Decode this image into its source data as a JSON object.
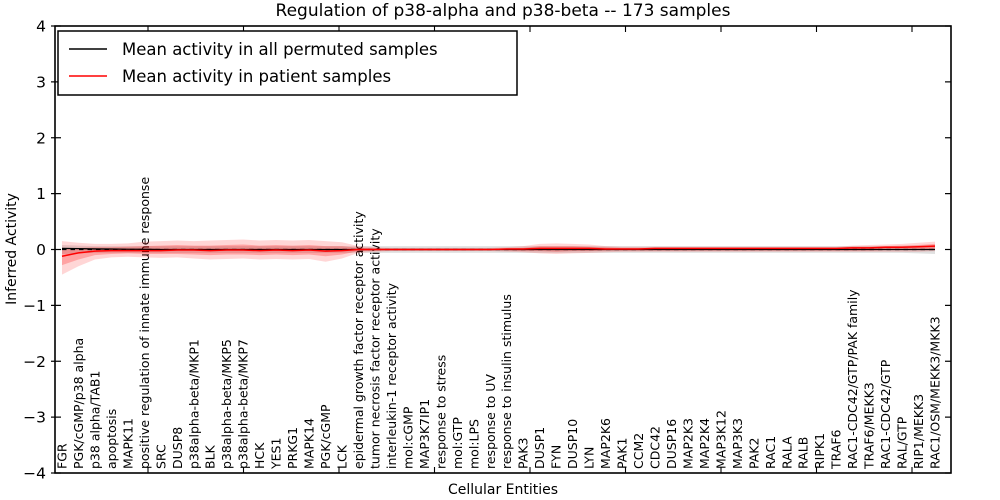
{
  "chart_data": {
    "type": "line",
    "title": "Regulation of p38-alpha and p38-beta -- 173 samples",
    "xlabel": "Cellular Entities",
    "ylabel": "Inferred Activity",
    "ylim": [
      -4,
      4
    ],
    "yticks": [
      4,
      3,
      2,
      1,
      0,
      -1,
      -2,
      -3,
      -4
    ],
    "grid": false,
    "legend_position": "upper left",
    "zero_line_style": "dashed",
    "colors": {
      "permuted_line": "#000000",
      "patient_line": "#ff0000",
      "patient_band_outer": "rgba(255,0,0,0.16)",
      "patient_band_inner": "rgba(255,0,0,0.24)",
      "permuted_band": "rgba(0,0,0,0.12)"
    },
    "legend": [
      {
        "label": "Mean activity in all permuted samples",
        "color": "#000000"
      },
      {
        "label": "Mean activity in patient samples",
        "color": "#ff0000"
      }
    ],
    "categories": [
      "FGR",
      "PGK/cGMP/p38 alpha",
      "p38 alpha/TAB1",
      "apoptosis",
      "MAPK11",
      "positive regulation of innate immune response",
      "SRC",
      "DUSP8",
      "p38alpha-beta/MKP1",
      "BLK",
      "p38alpha-beta/MKP5",
      "p38alpha-beta/MKP7",
      "HCK",
      "YES1",
      "PRKG1",
      "MAPK14",
      "PGK/cGMP",
      "LCK",
      "epidermal growth factor receptor activity",
      "tumor necrosis factor receptor activity",
      "interleukin-1 receptor activity",
      "mol:cGMP",
      "MAP3K7IP1",
      "response to stress",
      "mol:GTP",
      "mol:LPS",
      "response to UV",
      "response to insulin stimulus",
      "PAK3",
      "DUSP1",
      "FYN",
      "DUSP10",
      "LYN",
      "MAP2K6",
      "PAK1",
      "CCM2",
      "CDC42",
      "DUSP16",
      "MAP2K3",
      "MAP2K4",
      "MAP3K12",
      "MAP3K3",
      "PAK2",
      "RAC1",
      "RALA",
      "RALB",
      "RIPK1",
      "TRAF6",
      "RAC1-CDC42/GTP/PAK family",
      "TRAF6/MEKK3",
      "RAC1-CDC42/GTP",
      "RAL/GTP",
      "RIP1/MEKK3",
      "RAC1/OSM/MEKK3/MKK3"
    ],
    "series": [
      {
        "name": "Mean activity in all permuted samples",
        "values": [
          0.02,
          0.015,
          0.01,
          0.008,
          0.005,
          0.003,
          0,
          0,
          0,
          0,
          0,
          0,
          0,
          0,
          0,
          0,
          0,
          0,
          0,
          0,
          0,
          0,
          0,
          0,
          0,
          0,
          0,
          0,
          0,
          0,
          0,
          0,
          0,
          0,
          0,
          0,
          0,
          0,
          0,
          0,
          0,
          0,
          0,
          0,
          0,
          0,
          0,
          0,
          0,
          0,
          0,
          0,
          0,
          0
        ]
      },
      {
        "name": "Mean activity in patient samples",
        "values": [
          -0.12,
          -0.06,
          -0.03,
          -0.02,
          -0.02,
          -0.02,
          -0.02,
          -0.01,
          -0.01,
          -0.02,
          -0.01,
          -0.01,
          -0.02,
          -0.01,
          -0.02,
          -0.01,
          -0.03,
          -0.02,
          0,
          0,
          0,
          0,
          0,
          0,
          0,
          0,
          0,
          0.01,
          0.01,
          0.02,
          0.02,
          0.02,
          0.02,
          0.01,
          0.01,
          0.01,
          0.02,
          0.02,
          0.02,
          0.02,
          0.02,
          0.02,
          0.02,
          0.02,
          0.02,
          0.02,
          0.02,
          0.02,
          0.03,
          0.03,
          0.04,
          0.04,
          0.05,
          0.06
        ]
      }
    ],
    "bands": {
      "patient_outer_upper": [
        0.15,
        0.12,
        0.1,
        0.1,
        0.11,
        0.14,
        0.15,
        0.16,
        0.15,
        0.16,
        0.17,
        0.18,
        0.16,
        0.17,
        0.16,
        0.17,
        0.15,
        0.13,
        0.06,
        0.04,
        0.03,
        0.03,
        0.03,
        0.03,
        0.03,
        0.03,
        0.03,
        0.04,
        0.06,
        0.1,
        0.11,
        0.1,
        0.09,
        0.06,
        0.05,
        0.05,
        0.05,
        0.05,
        0.05,
        0.05,
        0.05,
        0.05,
        0.05,
        0.05,
        0.05,
        0.05,
        0.05,
        0.05,
        0.07,
        0.08,
        0.09,
        0.1,
        0.12,
        0.14
      ],
      "patient_outer_lower": [
        -0.45,
        -0.3,
        -0.18,
        -0.14,
        -0.13,
        -0.14,
        -0.15,
        -0.14,
        -0.16,
        -0.18,
        -0.17,
        -0.16,
        -0.18,
        -0.17,
        -0.18,
        -0.17,
        -0.22,
        -0.16,
        -0.06,
        -0.04,
        -0.03,
        -0.03,
        -0.03,
        -0.03,
        -0.03,
        -0.03,
        -0.03,
        -0.04,
        -0.05,
        -0.07,
        -0.08,
        -0.07,
        -0.06,
        -0.05,
        -0.04,
        -0.04,
        -0.04,
        -0.04,
        -0.04,
        -0.04,
        -0.04,
        -0.04,
        -0.04,
        -0.04,
        -0.04,
        -0.04,
        -0.04,
        -0.04,
        -0.04,
        -0.04,
        -0.04,
        -0.04,
        -0.04,
        -0.03
      ],
      "patient_inner_upper": [
        0.02,
        0.03,
        0.04,
        0.04,
        0.05,
        0.06,
        0.07,
        0.08,
        0.07,
        0.07,
        0.08,
        0.09,
        0.07,
        0.08,
        0.07,
        0.08,
        0.06,
        0.06,
        0.03,
        0.02,
        0.015,
        0.015,
        0.015,
        0.015,
        0.015,
        0.015,
        0.015,
        0.02,
        0.03,
        0.06,
        0.06,
        0.06,
        0.05,
        0.04,
        0.03,
        0.03,
        0.03,
        0.03,
        0.03,
        0.03,
        0.03,
        0.03,
        0.03,
        0.03,
        0.03,
        0.03,
        0.03,
        0.03,
        0.05,
        0.05,
        0.06,
        0.07,
        0.08,
        0.1
      ],
      "patient_inner_lower": [
        -0.28,
        -0.18,
        -0.1,
        -0.08,
        -0.07,
        -0.08,
        -0.08,
        -0.08,
        -0.09,
        -0.1,
        -0.09,
        -0.09,
        -0.1,
        -0.09,
        -0.1,
        -0.09,
        -0.12,
        -0.09,
        -0.03,
        -0.02,
        -0.015,
        -0.015,
        -0.015,
        -0.015,
        -0.015,
        -0.015,
        -0.015,
        -0.02,
        -0.03,
        -0.03,
        -0.04,
        -0.03,
        -0.03,
        -0.02,
        -0.02,
        -0.02,
        -0.02,
        -0.02,
        -0.02,
        -0.02,
        -0.02,
        -0.02,
        -0.02,
        -0.02,
        -0.02,
        -0.02,
        -0.02,
        -0.02,
        -0.02,
        -0.02,
        -0.01,
        -0.01,
        -0.01,
        0
      ],
      "permuted_halfwidth": [
        0.08,
        0.07,
        0.06,
        0.06,
        0.06,
        0.06,
        0.06,
        0.06,
        0.06,
        0.06,
        0.06,
        0.06,
        0.06,
        0.06,
        0.06,
        0.06,
        0.06,
        0.06,
        0.06,
        0.06,
        0.06,
        0.06,
        0.06,
        0.06,
        0.06,
        0.06,
        0.06,
        0.06,
        0.06,
        0.06,
        0.06,
        0.06,
        0.06,
        0.06,
        0.06,
        0.06,
        0.06,
        0.06,
        0.06,
        0.06,
        0.06,
        0.06,
        0.06,
        0.06,
        0.06,
        0.06,
        0.06,
        0.06,
        0.06,
        0.06,
        0.06,
        0.06,
        0.07,
        0.08
      ]
    }
  }
}
